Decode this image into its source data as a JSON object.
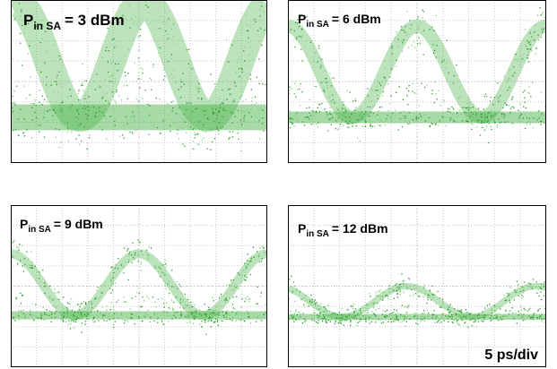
{
  "panels": [
    {
      "label": {
        "symbol": "P",
        "subscript": "in SA",
        "value": "= 3 dBm"
      }
    },
    {
      "label": {
        "symbol": "P",
        "subscript": "in SA",
        "value": "= 6 dBm"
      }
    },
    {
      "label": {
        "symbol": "P",
        "subscript": "in SA",
        "value": "= 9 dBm"
      }
    },
    {
      "label": {
        "symbol": "P",
        "subscript": "in SA",
        "value": "= 12 dBm"
      }
    }
  ],
  "time_scale": "5 ps/div"
}
